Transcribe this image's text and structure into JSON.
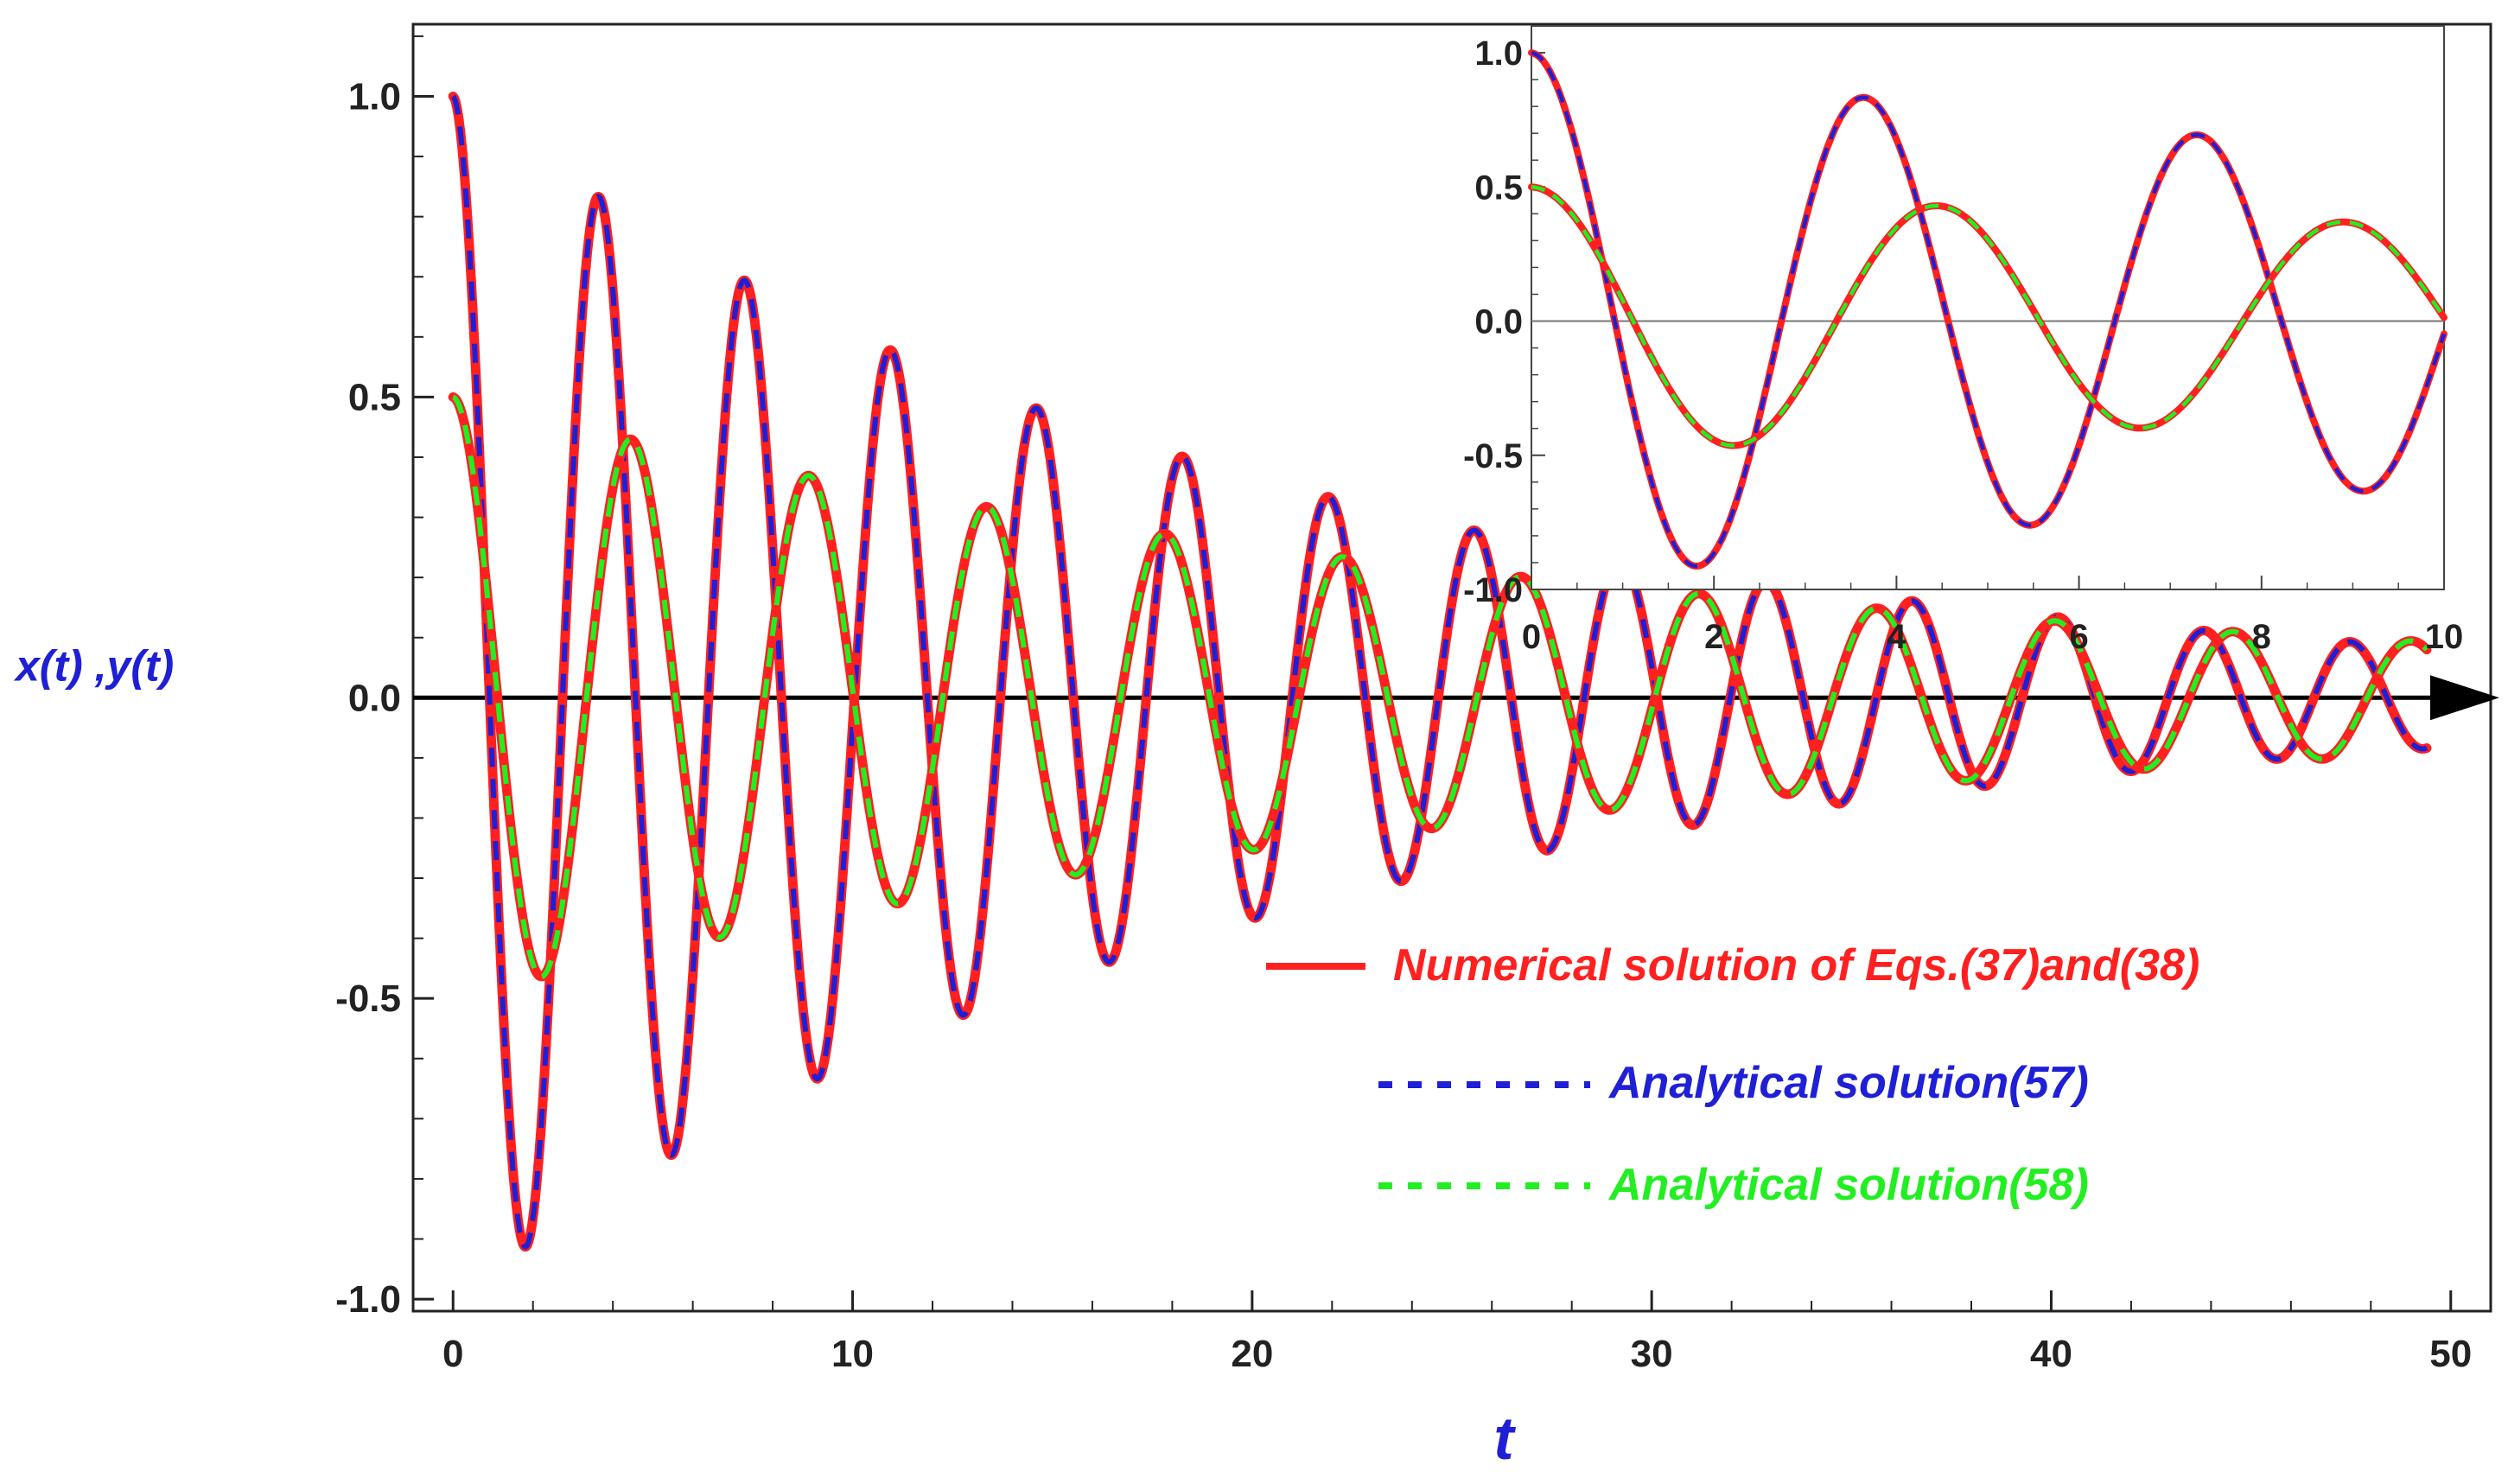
{
  "chart_data": [
    {
      "id": "main",
      "type": "line",
      "xlabel": "t",
      "ylabel": "x(t) ,y(t)",
      "xlim": [
        -1,
        51
      ],
      "ylim": [
        -1.02,
        1.12
      ],
      "x_ticks": [
        0,
        10,
        20,
        30,
        40,
        50
      ],
      "x_tick_labels": [
        "0",
        "10",
        "20",
        "30",
        "40",
        "50"
      ],
      "y_ticks": [
        -1.0,
        -0.5,
        0.0,
        0.5,
        1.0
      ],
      "y_tick_labels": [
        "-1.0",
        "-0.5",
        "0.0",
        "0.5",
        "1.0"
      ],
      "x_range": [
        0,
        49.4
      ],
      "frame": true,
      "grid": false,
      "x_axis_arrow": true,
      "legend_position": "center-right",
      "series": [
        {
          "name": "Numerical solution of Eqs.(37)and(38)",
          "style": "solid",
          "color": "#ff2020",
          "model": {
            "kind": "damped-cos",
            "amplitude": 1.0,
            "decay": 0.05,
            "omega": 1.72,
            "phase": 0.0
          }
        },
        {
          "name": "Analytical solution(57)",
          "style": "dashed",
          "color": "#1f1fd6",
          "model": {
            "kind": "damped-cos",
            "amplitude": 1.0,
            "decay": 0.05,
            "omega": 1.72,
            "phase": 0.0
          }
        },
        {
          "name": "Numerical solution of Eqs.(37)and(38)",
          "style": "solid",
          "color": "#ff2020",
          "model": {
            "kind": "damped-cos",
            "amplitude": 0.5,
            "decay": 0.034,
            "omega": 1.41,
            "phase": 0.0
          }
        },
        {
          "name": "Analytical solution(58)",
          "style": "dashed",
          "color": "#22ee22",
          "model": {
            "kind": "damped-cos",
            "amplitude": 0.5,
            "decay": 0.034,
            "omega": 1.41,
            "phase": 0.0
          }
        }
      ]
    },
    {
      "id": "inset",
      "type": "line",
      "xlim": [
        0,
        10
      ],
      "ylim": [
        -1.0,
        1.1
      ],
      "x_ticks": [
        0,
        2,
        4,
        6,
        8,
        10
      ],
      "x_tick_labels": [
        "0",
        "2",
        "4",
        "6",
        "8",
        "10"
      ],
      "y_ticks": [
        -1.0,
        -0.5,
        0.0,
        0.5,
        1.0
      ],
      "y_tick_labels": [
        "-1.0",
        "-0.5",
        "0.0",
        "0.5",
        "1.0"
      ],
      "x_range": [
        0,
        10
      ],
      "frame": true,
      "grid": false,
      "zero_line": true
    }
  ],
  "legend": {
    "entries": [
      {
        "label": "Numerical solution of Eqs.(37)and(38)",
        "style": "solid",
        "color": "#ff2020"
      },
      {
        "label": "Analytical solution(57)",
        "style": "dashed",
        "color": "#1f1fd6"
      },
      {
        "label": "Analytical solution(58)",
        "style": "dashed",
        "color": "#22ee22"
      }
    ]
  }
}
